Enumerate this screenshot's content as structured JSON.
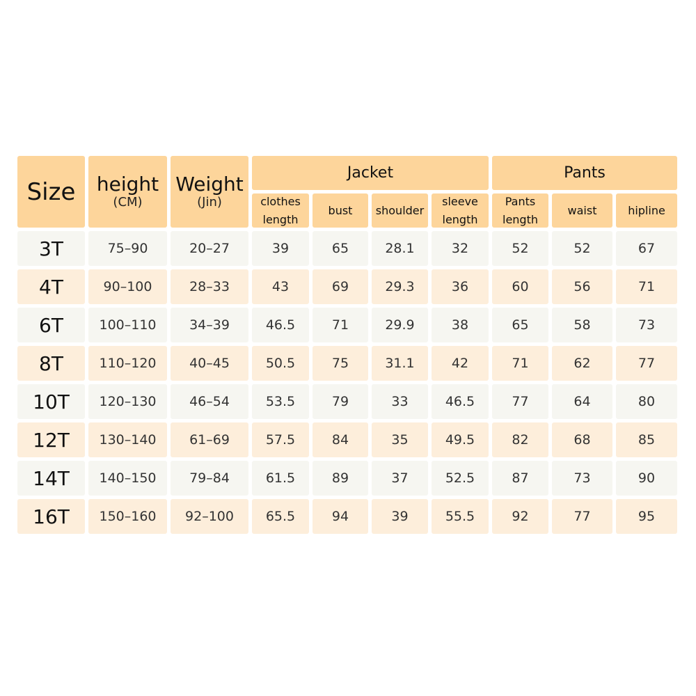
{
  "colors": {
    "header": "#fdd59b",
    "row_odd": "#f6f6f1",
    "row_even": "#fdeedb"
  },
  "headers": {
    "size": "Size",
    "height": "height",
    "height_unit": "(CM)",
    "weight": "Weight",
    "weight_unit": "(Jin)",
    "jacket": "Jacket",
    "pants": "Pants",
    "sub": [
      "clothes length",
      "bust",
      "shoulder",
      "sleeve length",
      "Pants length",
      "waist",
      "hipline"
    ]
  },
  "rows": [
    [
      "3T",
      "75-90",
      "20-27",
      "39",
      "65",
      "28.1",
      "32",
      "52",
      "52",
      "67"
    ],
    [
      "4T",
      "90-100",
      "28-33",
      "43",
      "69",
      "29.3",
      "36",
      "60",
      "56",
      "71"
    ],
    [
      "6T",
      "100-110",
      "34-39",
      "46.5",
      "71",
      "29.9",
      "38",
      "65",
      "58",
      "73"
    ],
    [
      "8T",
      "110-120",
      "40-45",
      "50.5",
      "75",
      "31.1",
      "42",
      "71",
      "62",
      "77"
    ],
    [
      "10T",
      "120-130",
      "46-54",
      "53.5",
      "79",
      "33",
      "46.5",
      "77",
      "64",
      "80"
    ],
    [
      "12T",
      "130-140",
      "61-69",
      "57.5",
      "84",
      "35",
      "49.5",
      "82",
      "68",
      "85"
    ],
    [
      "14T",
      "140-150",
      "79-84",
      "61.5",
      "89",
      "37",
      "52.5",
      "87",
      "73",
      "90"
    ],
    [
      "16T",
      "150-160",
      "92-100",
      "65.5",
      "94",
      "39",
      "55.5",
      "92",
      "77",
      "95"
    ]
  ]
}
